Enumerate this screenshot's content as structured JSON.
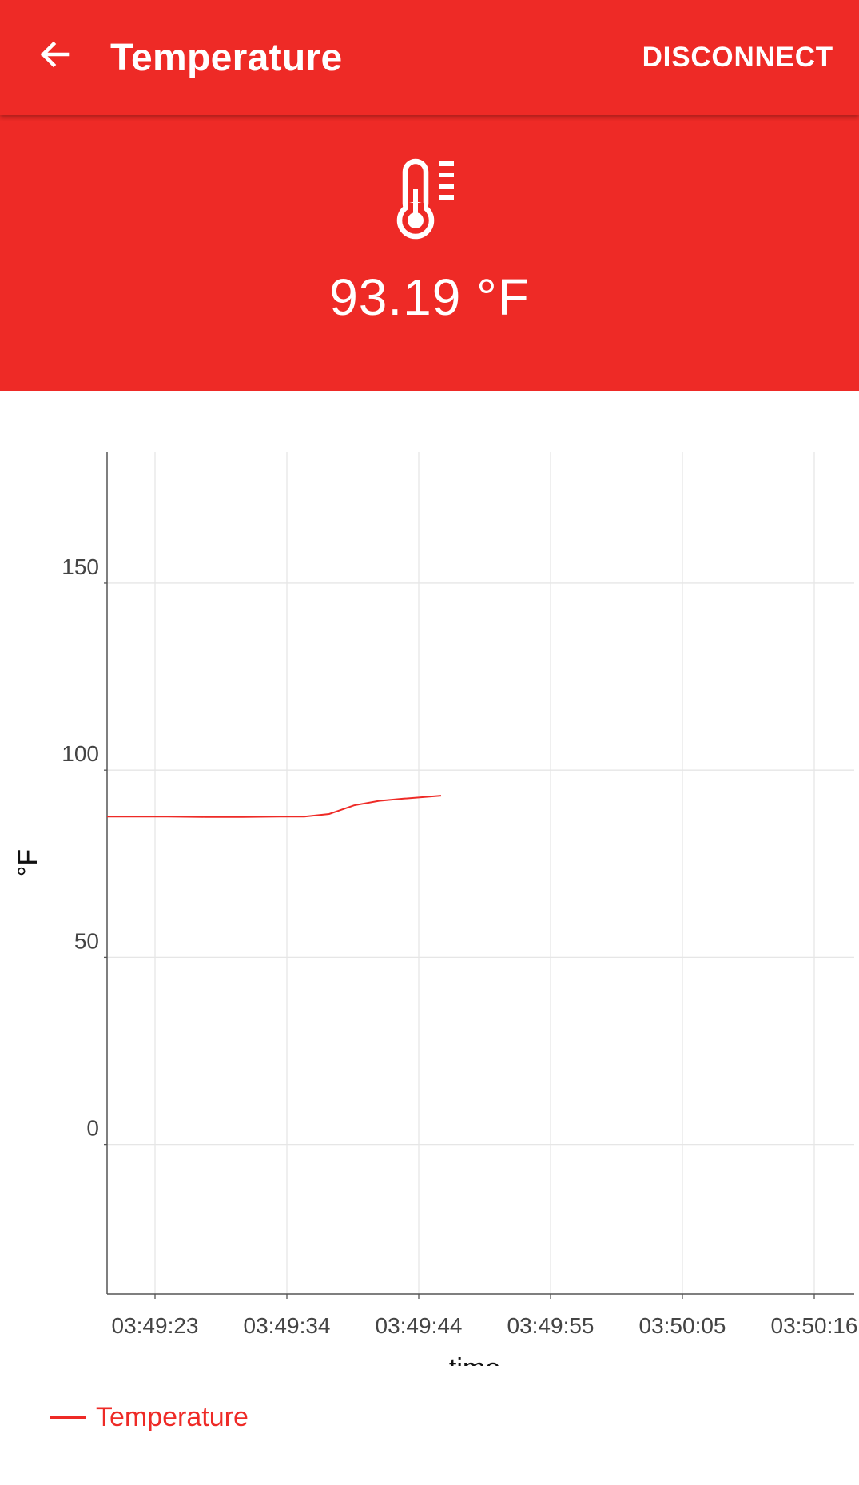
{
  "app_bar": {
    "title": "Temperature",
    "back_icon": "arrow-left-icon",
    "disconnect_label": "DISCONNECT"
  },
  "hero": {
    "icon": "thermometer-icon",
    "reading": "93.19 °F"
  },
  "colors": {
    "accent": "#ee2a26",
    "background": "#ffffff",
    "grid": "#e6e6e6",
    "axis": "#555555"
  },
  "chart_data": {
    "type": "line",
    "title": "",
    "xlabel": "time",
    "ylabel": "°F",
    "ylim": [
      -40,
      185
    ],
    "y_ticks": [
      0,
      50,
      100,
      150
    ],
    "x_ticks": [
      "03:49:23",
      "03:49:34",
      "03:49:44",
      "03:49:55",
      "03:50:05",
      "03:50:16"
    ],
    "grid": true,
    "legend": "bottom-left",
    "series": [
      {
        "name": "Temperature",
        "color": "#ee2a26",
        "x": [
          "03:49:19",
          "03:49:22",
          "03:49:24",
          "03:49:27",
          "03:49:30",
          "03:49:33",
          "03:49:35",
          "03:49:37",
          "03:49:39",
          "03:49:41",
          "03:49:43",
          "03:49:46"
        ],
        "y": [
          87.6,
          87.6,
          87.6,
          87.5,
          87.5,
          87.6,
          87.6,
          88.3,
          90.6,
          91.8,
          92.4,
          93.19
        ]
      }
    ]
  }
}
